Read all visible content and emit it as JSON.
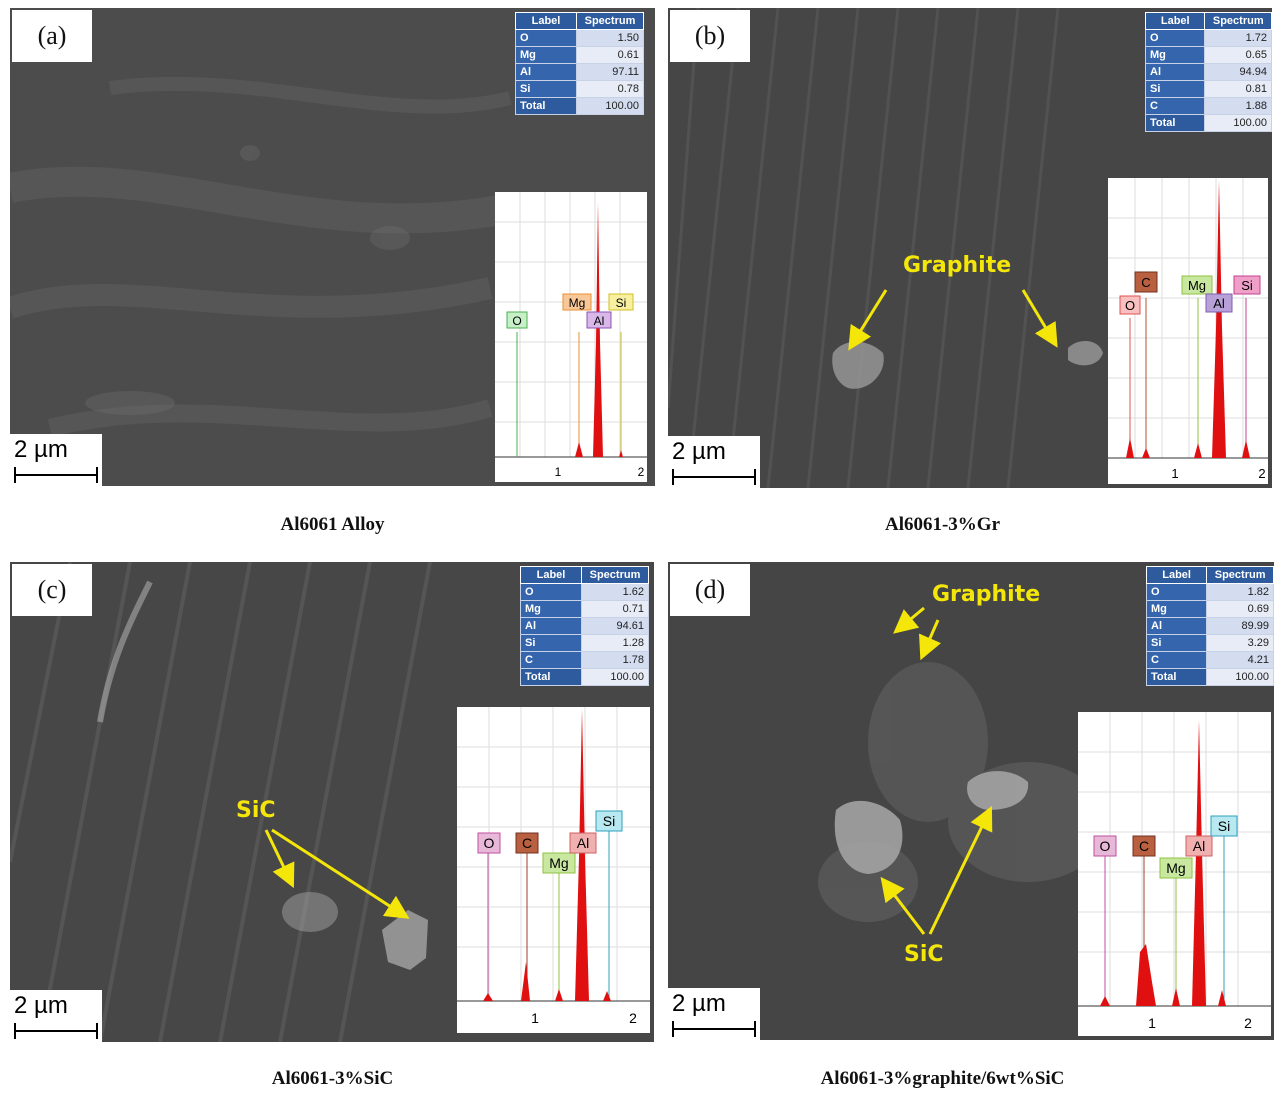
{
  "panels": [
    {
      "label": "(a)",
      "caption": "Al6061 Alloy",
      "scale_bar": "2 µm",
      "table": {
        "headers": [
          "Label",
          "Spectrum"
        ],
        "rows": [
          {
            "label": "O",
            "value": "1.50"
          },
          {
            "label": "Mg",
            "value": "0.61"
          },
          {
            "label": "Al",
            "value": "97.11"
          },
          {
            "label": "Si",
            "value": "0.78"
          },
          {
            "label": "Total",
            "value": "100.00"
          }
        ]
      },
      "spectrum": {
        "ticks": [
          "1",
          "2"
        ],
        "peaks": [
          "O",
          "Mg",
          "Al",
          "Si"
        ]
      },
      "annotations": []
    },
    {
      "label": "(b)",
      "caption": "Al6061-3%Gr",
      "scale_bar": "2 µm",
      "table": {
        "headers": [
          "Label",
          "Spectrum"
        ],
        "rows": [
          {
            "label": "O",
            "value": "1.72"
          },
          {
            "label": "Mg",
            "value": "0.65"
          },
          {
            "label": "Al",
            "value": "94.94"
          },
          {
            "label": "Si",
            "value": "0.81"
          },
          {
            "label": "C",
            "value": "1.88"
          },
          {
            "label": "Total",
            "value": "100.00"
          }
        ]
      },
      "spectrum": {
        "ticks": [
          "1",
          "2"
        ],
        "peaks": [
          "O",
          "C",
          "Mg",
          "Al",
          "Si"
        ]
      },
      "annotations": [
        "Graphite"
      ]
    },
    {
      "label": "(c)",
      "caption": "Al6061-3%SiC",
      "scale_bar": "2 µm",
      "table": {
        "headers": [
          "Label",
          "Spectrum"
        ],
        "rows": [
          {
            "label": "O",
            "value": "1.62"
          },
          {
            "label": "Mg",
            "value": "0.71"
          },
          {
            "label": "Al",
            "value": "94.61"
          },
          {
            "label": "Si",
            "value": "1.28"
          },
          {
            "label": "C",
            "value": "1.78"
          },
          {
            "label": "Total",
            "value": "100.00"
          }
        ]
      },
      "spectrum": {
        "ticks": [
          "1",
          "2"
        ],
        "peaks": [
          "O",
          "C",
          "Mg",
          "Al",
          "Si"
        ]
      },
      "annotations": [
        "SiC"
      ]
    },
    {
      "label": "(d)",
      "caption": "Al6061-3%graphite/6wt%SiC",
      "scale_bar": "2 µm",
      "table": {
        "headers": [
          "Label",
          "Spectrum"
        ],
        "rows": [
          {
            "label": "O",
            "value": "1.82"
          },
          {
            "label": "Mg",
            "value": "0.69"
          },
          {
            "label": "Al",
            "value": "89.99"
          },
          {
            "label": "Si",
            "value": "3.29"
          },
          {
            "label": "C",
            "value": "4.21"
          },
          {
            "label": "Total",
            "value": "100.00"
          }
        ]
      },
      "spectrum": {
        "ticks": [
          "1",
          "2"
        ],
        "peaks": [
          "O",
          "C",
          "Mg",
          "Al",
          "Si"
        ]
      },
      "annotations": [
        "Graphite",
        "SiC"
      ]
    }
  ]
}
